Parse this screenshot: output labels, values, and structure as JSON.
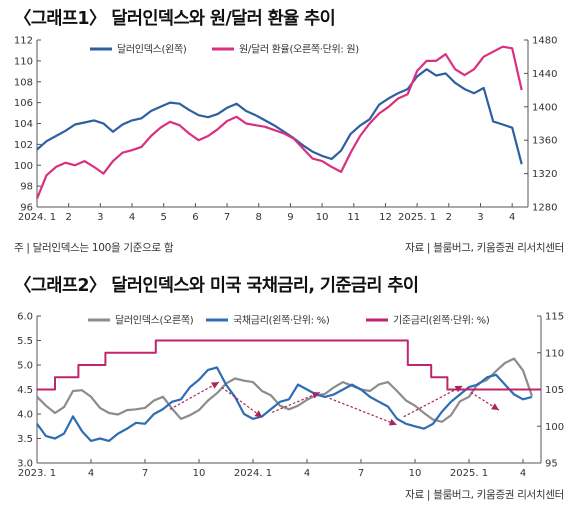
{
  "chart_data": [
    {
      "type": "line",
      "title": "〈그래프1〉 달러인덱스와 원/달러 환율 추이",
      "x_ticks": [
        "2024. 1",
        "2",
        "3",
        "4",
        "5",
        "6",
        "7",
        "8",
        "9",
        "10",
        "11",
        "12",
        "2025. 1",
        "2",
        "3",
        "4"
      ],
      "ylim_left": [
        96,
        112
      ],
      "yticks_left": [
        "96",
        "98",
        "100",
        "102",
        "104",
        "106",
        "108",
        "110",
        "112"
      ],
      "ylim_right": [
        1280,
        1480
      ],
      "yticks_right": [
        "1280",
        "1320",
        "1360",
        "1400",
        "1440",
        "1480"
      ],
      "grid": false,
      "legend_position": "top",
      "series": [
        {
          "name": "달러인덱스(왼쪽)",
          "axis": "left",
          "color": "#2e5f9e",
          "x": [
            0,
            0.3,
            0.6,
            0.9,
            1.2,
            1.5,
            1.8,
            2.1,
            2.4,
            2.7,
            3.0,
            3.3,
            3.6,
            3.9,
            4.2,
            4.5,
            4.8,
            5.1,
            5.4,
            5.7,
            6.0,
            6.3,
            6.6,
            6.9,
            7.2,
            7.5,
            7.8,
            8.1,
            8.4,
            8.7,
            9.0,
            9.3,
            9.6,
            9.9,
            10.2,
            10.5,
            10.8,
            11.1,
            11.4,
            11.7,
            12.0,
            12.3,
            12.6,
            12.9,
            13.2,
            13.5,
            13.8,
            14.1,
            14.4,
            14.7,
            15.0,
            15.3
          ],
          "y": [
            101.5,
            102.3,
            102.8,
            103.3,
            103.9,
            104.1,
            104.3,
            104.0,
            103.2,
            103.9,
            104.3,
            104.5,
            105.2,
            105.6,
            106.0,
            105.9,
            105.3,
            104.8,
            104.6,
            104.9,
            105.5,
            105.9,
            105.2,
            104.8,
            104.3,
            103.8,
            103.2,
            102.6,
            101.9,
            101.3,
            100.9,
            100.6,
            101.4,
            103.0,
            103.8,
            104.4,
            105.8,
            106.4,
            106.9,
            107.3,
            108.5,
            109.2,
            108.6,
            108.8,
            107.9,
            107.3,
            106.9,
            107.4,
            104.2,
            103.9,
            103.6,
            100.1
          ]
        },
        {
          "name": "원/달러 환율(오른쪽·단위: 원)",
          "axis": "right",
          "color": "#d9307f",
          "x": [
            0,
            0.3,
            0.6,
            0.9,
            1.2,
            1.5,
            1.8,
            2.1,
            2.4,
            2.7,
            3.0,
            3.3,
            3.6,
            3.9,
            4.2,
            4.5,
            4.8,
            5.1,
            5.4,
            5.7,
            6.0,
            6.3,
            6.6,
            6.9,
            7.2,
            7.5,
            7.8,
            8.1,
            8.4,
            8.7,
            9.0,
            9.3,
            9.6,
            9.9,
            10.2,
            10.5,
            10.8,
            11.1,
            11.4,
            11.7,
            12.0,
            12.3,
            12.6,
            12.9,
            13.2,
            13.5,
            13.8,
            14.1,
            14.4,
            14.7,
            15.0,
            15.3
          ],
          "y": [
            1290,
            1318,
            1328,
            1333,
            1330,
            1335,
            1328,
            1320,
            1335,
            1345,
            1348,
            1352,
            1365,
            1375,
            1382,
            1378,
            1368,
            1360,
            1365,
            1373,
            1383,
            1388,
            1380,
            1378,
            1376,
            1372,
            1368,
            1362,
            1350,
            1338,
            1335,
            1328,
            1322,
            1345,
            1365,
            1380,
            1392,
            1400,
            1410,
            1415,
            1443,
            1455,
            1455,
            1463,
            1445,
            1438,
            1445,
            1460,
            1466,
            1472,
            1470,
            1420
          ]
        }
      ],
      "note": "주 | 달러인덱스는 100을 기준으로 함",
      "source": "자료 | 블룸버그, 키움증권 리서치센터"
    },
    {
      "type": "line",
      "title": "〈그래프2〉 달러인덱스와 미국 국채금리, 기준금리 추이",
      "x_ticks": [
        "2023. 1",
        "4",
        "7",
        "10",
        "2024. 1",
        "4",
        "7",
        "10",
        "2025. 1",
        "4"
      ],
      "ylim_left": [
        3.0,
        6.0
      ],
      "yticks_left": [
        "3.0",
        "3.5",
        "4.0",
        "4.5",
        "5.0",
        "5.5",
        "6.0"
      ],
      "ylim_right": [
        95,
        115
      ],
      "yticks_right": [
        "95",
        "100",
        "105",
        "110",
        "115"
      ],
      "grid": false,
      "legend_position": "top",
      "series": [
        {
          "name": "달러인덱스(오른쪽)",
          "axis": "right",
          "color": "#8c8c8c",
          "x": [
            0,
            0.5,
            1,
            1.5,
            2,
            2.5,
            3,
            3.5,
            4,
            4.5,
            5,
            5.5,
            6,
            6.5,
            7,
            7.5,
            8,
            8.5,
            9,
            9.5,
            10,
            10.5,
            11,
            11.5,
            12,
            12.5,
            13,
            13.5,
            14,
            14.5,
            15,
            15.5,
            16,
            16.5,
            17,
            17.5,
            18,
            18.5,
            19,
            19.5,
            20,
            20.5,
            21,
            21.5,
            22,
            22.5,
            23,
            23.5,
            24,
            24.5,
            25,
            25.5,
            26,
            26.5,
            27,
            27.5
          ],
          "y": [
            104.0,
            102.8,
            101.8,
            102.6,
            104.8,
            104.9,
            104.0,
            102.5,
            101.8,
            101.6,
            102.2,
            102.3,
            102.5,
            103.5,
            104.0,
            102.4,
            101.0,
            101.5,
            102.2,
            103.5,
            104.5,
            105.8,
            106.5,
            106.2,
            106.0,
            104.8,
            104.2,
            102.8,
            102.3,
            102.8,
            103.6,
            104.2,
            104.4,
            105.3,
            106.0,
            105.5,
            105.0,
            104.8,
            105.7,
            106.0,
            104.8,
            103.5,
            102.8,
            101.8,
            100.9,
            100.6,
            101.5,
            103.4,
            104.0,
            105.8,
            106.3,
            107.5,
            108.6,
            109.2,
            107.6,
            104.1
          ]
        },
        {
          "name": "국채금리(왼쪽·단위: %)",
          "axis": "left",
          "color": "#2e6db4",
          "x": [
            0,
            0.5,
            1,
            1.5,
            2,
            2.5,
            3,
            3.5,
            4,
            4.5,
            5,
            5.5,
            6,
            6.5,
            7,
            7.5,
            8,
            8.5,
            9,
            9.5,
            10,
            10.5,
            11,
            11.5,
            12,
            12.5,
            13,
            13.5,
            14,
            14.5,
            15,
            15.5,
            16,
            16.5,
            17,
            17.5,
            18,
            18.5,
            19,
            19.5,
            20,
            20.5,
            21,
            21.5,
            22,
            22.5,
            23,
            23.5,
            24,
            24.5,
            25,
            25.5,
            26,
            26.5,
            27,
            27.5
          ],
          "y": [
            3.8,
            3.55,
            3.5,
            3.6,
            3.95,
            3.65,
            3.45,
            3.5,
            3.45,
            3.6,
            3.7,
            3.82,
            3.8,
            4.0,
            4.1,
            4.25,
            4.3,
            4.55,
            4.7,
            4.9,
            4.95,
            4.6,
            4.35,
            4.0,
            3.9,
            3.95,
            4.1,
            4.25,
            4.3,
            4.6,
            4.5,
            4.4,
            4.35,
            4.4,
            4.5,
            4.6,
            4.5,
            4.35,
            4.25,
            4.15,
            3.9,
            3.8,
            3.75,
            3.7,
            3.8,
            4.05,
            4.25,
            4.4,
            4.55,
            4.6,
            4.75,
            4.8,
            4.6,
            4.4,
            4.3,
            4.35
          ]
        },
        {
          "name": "기준금리(왼쪽·단위: %)",
          "axis": "left",
          "color": "#c0246c",
          "step": true,
          "x": [
            0,
            1.0,
            2.3,
            3.8,
            5.0,
            6.6,
            9.2,
            20.6,
            21.9,
            22.8,
            28.0
          ],
          "y": [
            4.5,
            4.75,
            5.0,
            5.25,
            5.25,
            5.5,
            5.5,
            5.0,
            4.75,
            4.5,
            4.5
          ]
        }
      ],
      "source": "자료 | 블룸버그, 키움증권 리서치센터"
    }
  ]
}
